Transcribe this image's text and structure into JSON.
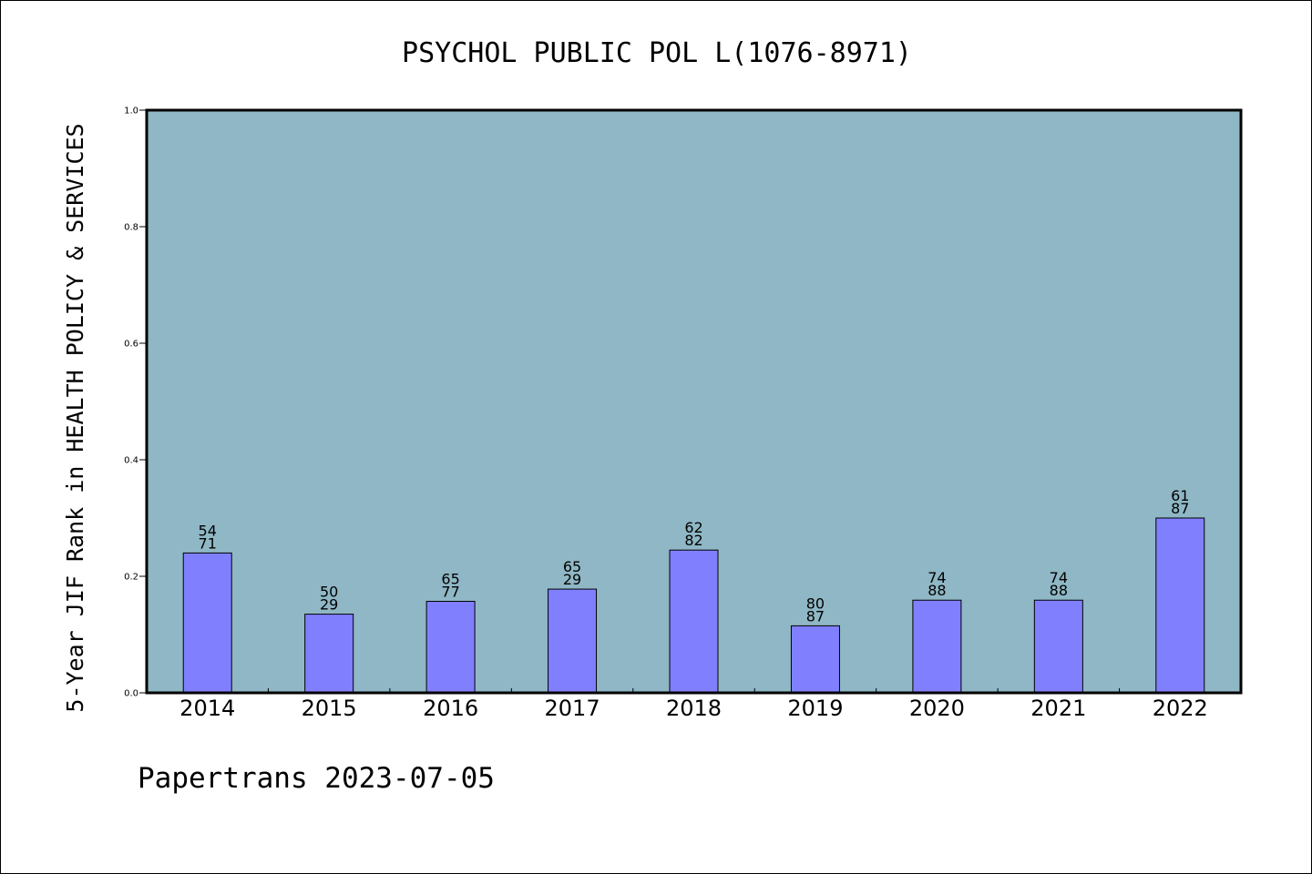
{
  "chart_data": {
    "type": "bar",
    "title": "PSYCHOL PUBLIC POL L(1076-8971)",
    "xlabel": "",
    "ylabel": "5-Year JIF Rank in HEALTH POLICY & SERVICES",
    "ylim": [
      0,
      1.0
    ],
    "yticks": [
      "0.0",
      "0.2",
      "0.4",
      "0.6",
      "0.8",
      "1.0"
    ],
    "categories": [
      "2014",
      "2015",
      "2016",
      "2017",
      "2018",
      "2019",
      "2020",
      "2021",
      "2022"
    ],
    "values": [
      0.24,
      0.135,
      0.157,
      0.178,
      0.245,
      0.115,
      0.159,
      0.159,
      0.3
    ],
    "labels": [
      [
        "54",
        "71"
      ],
      [
        "50",
        "29"
      ],
      [
        "65",
        "77"
      ],
      [
        "65",
        "29"
      ],
      [
        "62",
        "82"
      ],
      [
        "80",
        "87"
      ],
      [
        "74",
        "88"
      ],
      [
        "74",
        "88"
      ],
      [
        "61",
        "87"
      ]
    ],
    "grid": false,
    "colors": {
      "plot_background": "#8fb7c5",
      "bar_fill": "#8080ff",
      "bar_stroke": "#000000"
    }
  },
  "footer": {
    "text": "Papertrans 2023-07-05"
  }
}
